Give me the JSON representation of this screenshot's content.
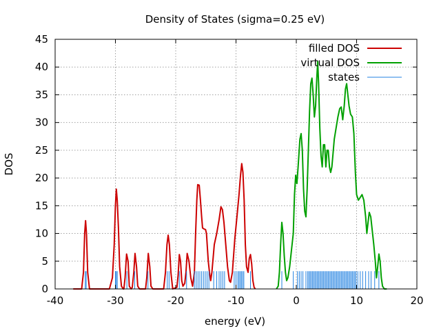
{
  "chart_data": {
    "type": "line",
    "title": "Density of States (sigma=0.25 eV)",
    "xlabel": "energy (eV)",
    "ylabel": "DOS",
    "xlim": [
      -40,
      20
    ],
    "ylim": [
      0,
      45
    ],
    "xticks": [
      -40,
      -30,
      -20,
      -10,
      0,
      10,
      20
    ],
    "yticks": [
      0,
      5,
      10,
      15,
      20,
      25,
      30,
      35,
      40,
      45
    ],
    "grid": true,
    "legend_position": "top-right",
    "series": [
      {
        "name": "filled DOS",
        "color": "#cc0000",
        "points": [
          [
            -37,
            0
          ],
          [
            -35.6,
            0
          ],
          [
            -35.3,
            3
          ],
          [
            -35.1,
            10
          ],
          [
            -34.95,
            12.3
          ],
          [
            -34.8,
            10
          ],
          [
            -34.6,
            3
          ],
          [
            -34.3,
            0
          ],
          [
            -31,
            0
          ],
          [
            -30.5,
            2
          ],
          [
            -30.2,
            8
          ],
          [
            -30.0,
            15
          ],
          [
            -29.85,
            18
          ],
          [
            -29.7,
            16
          ],
          [
            -29.5,
            11
          ],
          [
            -29.3,
            4
          ],
          [
            -29.0,
            0.5
          ],
          [
            -28.7,
            0
          ],
          [
            -28.6,
            0
          ],
          [
            -28.4,
            2
          ],
          [
            -28.15,
            6.3
          ],
          [
            -27.9,
            5
          ],
          [
            -27.7,
            0.5
          ],
          [
            -27.4,
            0
          ],
          [
            -27.2,
            0.3
          ],
          [
            -26.95,
            3
          ],
          [
            -26.75,
            6.4
          ],
          [
            -26.5,
            4
          ],
          [
            -26.3,
            0.5
          ],
          [
            -26.0,
            0
          ],
          [
            -25.0,
            0
          ],
          [
            -24.8,
            2
          ],
          [
            -24.55,
            6.4
          ],
          [
            -24.3,
            4
          ],
          [
            -24.1,
            0.5
          ],
          [
            -23.8,
            0
          ],
          [
            -22.0,
            0
          ],
          [
            -21.7,
            3
          ],
          [
            -21.45,
            8
          ],
          [
            -21.25,
            9.7
          ],
          [
            -21.05,
            8
          ],
          [
            -20.8,
            3
          ],
          [
            -20.5,
            0
          ],
          [
            -19.8,
            0.3
          ],
          [
            -19.6,
            2.5
          ],
          [
            -19.4,
            6.2
          ],
          [
            -19.2,
            5
          ],
          [
            -19.0,
            1.5
          ],
          [
            -18.8,
            0.5
          ],
          [
            -18.5,
            1
          ],
          [
            -18.3,
            3
          ],
          [
            -18.1,
            6.4
          ],
          [
            -17.8,
            5
          ],
          [
            -17.5,
            2
          ],
          [
            -17.2,
            0.5
          ],
          [
            -16.9,
            3
          ],
          [
            -16.7,
            10
          ],
          [
            -16.5,
            16
          ],
          [
            -16.35,
            18.8
          ],
          [
            -16.1,
            18.7
          ],
          [
            -15.9,
            16
          ],
          [
            -15.7,
            13
          ],
          [
            -15.55,
            11
          ],
          [
            -15.3,
            10.8
          ],
          [
            -15.05,
            10.7
          ],
          [
            -14.9,
            10
          ],
          [
            -14.6,
            5
          ],
          [
            -14.4,
            3
          ],
          [
            -14.2,
            1.5
          ],
          [
            -14.0,
            3
          ],
          [
            -13.6,
            8
          ],
          [
            -13.2,
            10
          ],
          [
            -12.8,
            12.5
          ],
          [
            -12.5,
            14.8
          ],
          [
            -12.25,
            14.3
          ],
          [
            -12.0,
            12
          ],
          [
            -11.7,
            8
          ],
          [
            -11.4,
            4
          ],
          [
            -11.1,
            1.5
          ],
          [
            -10.9,
            1.2
          ],
          [
            -10.6,
            3
          ],
          [
            -10.2,
            9
          ],
          [
            -9.8,
            13.5
          ],
          [
            -9.5,
            17
          ],
          [
            -9.25,
            20.5
          ],
          [
            -9.05,
            22.6
          ],
          [
            -8.85,
            21
          ],
          [
            -8.65,
            16
          ],
          [
            -8.45,
            8
          ],
          [
            -8.25,
            4
          ],
          [
            -8.0,
            3
          ],
          [
            -7.8,
            5.5
          ],
          [
            -7.6,
            6.2
          ],
          [
            -7.4,
            4.5
          ],
          [
            -7.2,
            1.5
          ],
          [
            -7.0,
            0.3
          ],
          [
            -6.8,
            0
          ]
        ]
      },
      {
        "name": "virtual DOS",
        "color": "#00a000",
        "points": [
          [
            -3.3,
            0
          ],
          [
            -3.0,
            0.5
          ],
          [
            -2.8,
            3
          ],
          [
            -2.6,
            8
          ],
          [
            -2.4,
            12
          ],
          [
            -2.2,
            10
          ],
          [
            -2.0,
            6
          ],
          [
            -1.8,
            3
          ],
          [
            -1.6,
            1.5
          ],
          [
            -1.4,
            2
          ],
          [
            -1.1,
            4
          ],
          [
            -0.8,
            7
          ],
          [
            -0.5,
            10
          ],
          [
            -0.3,
            17
          ],
          [
            -0.1,
            20.5
          ],
          [
            0.1,
            19
          ],
          [
            0.3,
            22
          ],
          [
            0.6,
            27
          ],
          [
            0.8,
            28
          ],
          [
            1.0,
            25
          ],
          [
            1.2,
            18
          ],
          [
            1.4,
            14
          ],
          [
            1.6,
            13
          ],
          [
            1.8,
            18
          ],
          [
            2.0,
            25
          ],
          [
            2.2,
            32
          ],
          [
            2.4,
            37
          ],
          [
            2.6,
            38
          ],
          [
            2.8,
            35
          ],
          [
            3.0,
            31
          ],
          [
            3.2,
            33
          ],
          [
            3.4,
            38
          ],
          [
            3.55,
            41
          ],
          [
            3.7,
            37
          ],
          [
            3.9,
            29
          ],
          [
            4.1,
            24
          ],
          [
            4.3,
            22
          ],
          [
            4.5,
            26
          ],
          [
            4.7,
            26
          ],
          [
            4.9,
            22
          ],
          [
            5.1,
            25
          ],
          [
            5.3,
            25
          ],
          [
            5.5,
            22
          ],
          [
            5.7,
            21
          ],
          [
            5.9,
            22
          ],
          [
            6.1,
            24.5
          ],
          [
            6.3,
            27
          ],
          [
            6.6,
            29
          ],
          [
            6.9,
            31
          ],
          [
            7.2,
            32.5
          ],
          [
            7.45,
            32.8
          ],
          [
            7.7,
            30.5
          ],
          [
            7.95,
            33
          ],
          [
            8.15,
            36
          ],
          [
            8.35,
            37
          ],
          [
            8.55,
            35
          ],
          [
            8.75,
            33
          ],
          [
            9.0,
            31.5
          ],
          [
            9.3,
            31
          ],
          [
            9.55,
            28
          ],
          [
            9.8,
            21
          ],
          [
            10.0,
            17
          ],
          [
            10.3,
            16
          ],
          [
            10.6,
            16.5
          ],
          [
            10.9,
            17
          ],
          [
            11.2,
            16
          ],
          [
            11.5,
            13
          ],
          [
            11.7,
            10
          ],
          [
            11.9,
            12
          ],
          [
            12.1,
            13.8
          ],
          [
            12.35,
            13
          ],
          [
            12.6,
            10.5
          ],
          [
            12.85,
            8
          ],
          [
            13.1,
            5
          ],
          [
            13.3,
            2
          ],
          [
            13.5,
            4
          ],
          [
            13.7,
            6.3
          ],
          [
            13.9,
            5
          ],
          [
            14.1,
            2
          ],
          [
            14.3,
            0.5
          ],
          [
            14.6,
            0
          ],
          [
            15.0,
            0
          ]
        ]
      },
      {
        "name": "states",
        "color": "#2080e0",
        "stick_height": 3.2,
        "energies": [
          -35.0,
          -34.85,
          -30.0,
          -29.85,
          -29.7,
          -28.1,
          -26.8,
          -24.6,
          -21.4,
          -21.1,
          -19.4,
          -18.2,
          -16.9,
          -16.6,
          -16.3,
          -16.0,
          -15.7,
          -15.4,
          -15.1,
          -14.8,
          -14.5,
          -13.7,
          -13.2,
          -12.8,
          -12.5,
          -12.2,
          -11.9,
          -10.3,
          -10.0,
          -9.7,
          -9.5,
          -9.3,
          -9.1,
          -8.9,
          -8.7,
          -7.6,
          -2.4,
          -0.5,
          0.2,
          0.5,
          0.8,
          1.1,
          1.6,
          1.9,
          2.1,
          2.3,
          2.5,
          2.7,
          2.9,
          3.1,
          3.3,
          3.5,
          3.7,
          3.9,
          4.1,
          4.3,
          4.5,
          4.7,
          4.9,
          5.1,
          5.3,
          5.5,
          5.7,
          5.9,
          6.1,
          6.3,
          6.5,
          6.7,
          6.9,
          7.1,
          7.3,
          7.5,
          7.7,
          7.9,
          8.1,
          8.3,
          8.5,
          8.7,
          8.9,
          9.1,
          9.3,
          9.5,
          9.7,
          9.9,
          10.2,
          10.6,
          11.0,
          11.5,
          12.0,
          12.4,
          13.0,
          13.7
        ]
      }
    ]
  }
}
